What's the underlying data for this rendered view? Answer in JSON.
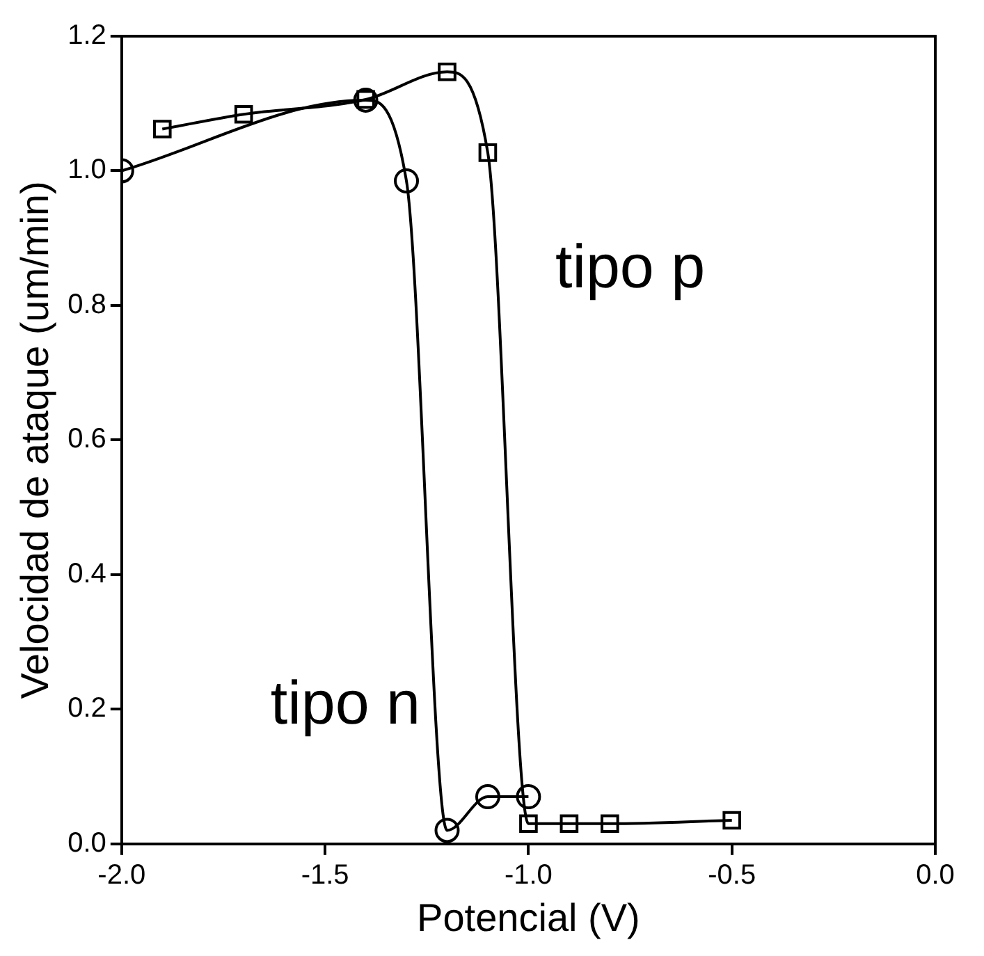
{
  "chart_data": {
    "type": "line",
    "xlabel": "Potencial (V)",
    "ylabel": "Velocidad de ataque (um/min)",
    "xlim": [
      -2.0,
      0.0
    ],
    "xticks": [
      {
        "value": -2,
        "label": "-2.0"
      },
      -1.5,
      {
        "value": -1,
        "label": "-1.0"
      },
      -0.5,
      {
        "value": 0,
        "label": "0.0"
      }
    ],
    "ylim": [
      0.0,
      1.2
    ],
    "yticks": [
      {
        "value": 0,
        "label": "0.0"
      },
      0.2,
      0.4,
      0.6,
      0.8,
      {
        "value": 1,
        "label": "1.0"
      },
      1.2
    ],
    "grid": false,
    "legend": false,
    "series": [
      {
        "color": "#000000",
        "marker": "circle",
        "x": [
          -2.0,
          -1.4,
          -1.3,
          -1.2,
          -1.1,
          -1.0
        ],
        "values": [
          1.0,
          1.105,
          0.985,
          0.02,
          0.07,
          0.07
        ]
      },
      {
        "color": "#000000",
        "marker": "square",
        "x": [
          -1.9,
          -1.7,
          -1.4,
          -1.2,
          -1.1,
          -1.0,
          -0.9,
          -0.8,
          -0.5
        ],
        "values": [
          1.062,
          1.084,
          1.106,
          1.147,
          1.027,
          0.03,
          0.03,
          0.03,
          0.035
        ]
      }
    ],
    "annotations": [
      "tipo p",
      "tipo n"
    ]
  }
}
